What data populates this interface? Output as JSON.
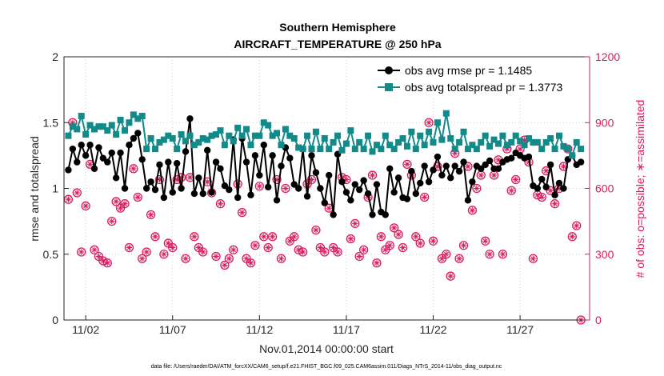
{
  "chart_data": {
    "type": "line",
    "title": "Southern Hemisphere",
    "subtitle": "AIRCRAFT_TEMPERATURE @ 250 hPa",
    "xlabel": "Nov.01,2014 00:00:00 start",
    "ylabel": "rmse and totalspread",
    "ylabel_right": "# of obs: o=possible; ∗=assimilated",
    "footer": "data file: /Users/raeder/DAI/ATM_forcXX/CAM6_setup/f.e21.FHIST_BGC.f09_025.CAM6assim.011/Diags_NTrS_2014-11/obs_diag_output.nc",
    "x_tick_labels": [
      "11/02",
      "11/07",
      "11/12",
      "11/17",
      "11/22",
      "11/27"
    ],
    "x_tick_days": [
      2,
      7,
      12,
      17,
      22,
      27
    ],
    "x_range_days": [
      0.75,
      31.0
    ],
    "ylim": [
      0,
      2
    ],
    "y_ticks": [
      "0",
      "0.5",
      "1",
      "1.5",
      "2"
    ],
    "ylim_right": [
      0,
      1200
    ],
    "y_ticks_right": [
      "0",
      "300",
      "600",
      "900",
      "1200"
    ],
    "legend_position": "top-right",
    "grid": true,
    "colors": {
      "rmse": "#000000",
      "spread": "#138a8a",
      "obs": "#d81b60",
      "axis": "#262626"
    },
    "x_start_day": 1.0,
    "x_step_days": 0.25,
    "series": [
      {
        "name": "obs avg rmse pr = 1.1485",
        "marker": "circle",
        "values": [
          1.14,
          1.3,
          1.2,
          1.33,
          1.25,
          1.33,
          1.15,
          1.31,
          1.23,
          1.2,
          1.27,
          1.08,
          1.27,
          1.0,
          1.33,
          1.38,
          1.42,
          1.22,
          1.0,
          1.05,
          0.99,
          1.18,
          0.93,
          1.2,
          0.97,
          1.19,
          1.0,
          1.28,
          1.53,
          0.96,
          1.08,
          0.96,
          1.29,
          0.97,
          1.2,
          1.15,
          1.02,
          0.99,
          1.37,
          0.93,
          1.38,
          1.2,
          0.95,
          1.25,
          1.1,
          1.33,
          1.01,
          1.25,
          0.91,
          1.17,
          1.31,
          1.23,
          1.03,
          1.0,
          1.3,
          0.94,
          1.25,
          1.12,
          1.0,
          0.89,
          1.1,
          0.8,
          1.26,
          1.05,
          0.97,
          0.91,
          1.03,
          0.99,
          1.06,
          0.96,
          0.8,
          1.03,
          0.82,
          0.8,
          1.15,
          0.97,
          1.08,
          0.93,
          0.92,
          1.13,
          0.96,
          1.04,
          1.17,
          1.05,
          1.14,
          1.24,
          1.1,
          1.17,
          1.08,
          1.17,
          1.13,
          1.2,
          0.91,
          1.05,
          1.17,
          1.15,
          1.18,
          1.21,
          1.15,
          1.15,
          1.2,
          1.22,
          1.23,
          1.27,
          1.25,
          1.23,
          1.24,
          1.02,
          1.0,
          1.07,
          1.01,
          1.18,
          0.95,
          1.04,
          1.0,
          1.22,
          1.25,
          1.18,
          1.2
        ]
      },
      {
        "name": "obs avg totalspread pr = 1.3773",
        "marker": "square",
        "values": [
          1.4,
          1.47,
          1.45,
          1.55,
          1.41,
          1.48,
          1.45,
          1.47,
          1.47,
          1.44,
          1.48,
          1.41,
          1.52,
          1.44,
          1.5,
          1.56,
          1.53,
          1.55,
          1.3,
          1.38,
          1.3,
          1.35,
          1.37,
          1.4,
          1.38,
          1.3,
          1.41,
          1.36,
          1.4,
          1.33,
          1.35,
          1.38,
          1.37,
          1.4,
          1.41,
          1.44,
          1.33,
          1.4,
          1.36,
          1.46,
          1.4,
          1.45,
          1.33,
          1.4,
          1.4,
          1.5,
          1.48,
          1.4,
          1.42,
          1.33,
          1.45,
          1.4,
          1.38,
          1.31,
          1.3,
          1.4,
          1.3,
          1.43,
          1.3,
          1.38,
          1.3,
          1.35,
          1.4,
          1.29,
          1.34,
          1.44,
          1.3,
          1.35,
          1.3,
          1.4,
          1.28,
          1.33,
          1.3,
          1.4,
          1.33,
          1.3,
          1.35,
          1.38,
          1.32,
          1.43,
          1.3,
          1.4,
          1.33,
          1.43,
          1.35,
          1.5,
          1.37,
          1.57,
          1.38,
          1.3,
          1.35,
          1.43,
          1.3,
          1.33,
          1.3,
          1.35,
          1.4,
          1.32,
          1.37,
          1.34,
          1.4,
          1.33,
          1.35,
          1.4,
          1.36,
          1.33,
          1.38,
          1.35,
          1.35,
          1.3,
          1.35,
          1.38,
          1.3,
          1.4,
          1.32,
          1.3,
          1.25,
          1.35,
          1.3
        ]
      },
      {
        "name": "obs possible",
        "marker": "circle-open",
        "axis": "right",
        "values": [
          550,
          900,
          580,
          310,
          520,
          710,
          320,
          290,
          270,
          260,
          450,
          540,
          510,
          530,
          330,
          690,
          560,
          280,
          310,
          480,
          380,
          640,
          300,
          350,
          330,
          640,
          650,
          280,
          650,
          380,
          330,
          310,
          630,
          580,
          290,
          530,
          250,
          280,
          320,
          620,
          490,
          280,
          260,
          340,
          610,
          380,
          330,
          380,
          640,
          280,
          600,
          360,
          380,
          320,
          310,
          620,
          640,
          410,
          330,
          310,
          510,
          330,
          310,
          650,
          640,
          370,
          440,
          290,
          320,
          560,
          660,
          260,
          380,
          320,
          340,
          420,
          390,
          330,
          710,
          660,
          380,
          350,
          560,
          900,
          360,
          700,
          280,
          300,
          200,
          760,
          280,
          340,
          700,
          500,
          600,
          660,
          360,
          300,
          660,
          730,
          300,
          780,
          590,
          640,
          780,
          820,
          720,
          280,
          570,
          560,
          680,
          590,
          530,
          600,
          700,
          780,
          380,
          430,
          0
        ]
      }
    ]
  },
  "legend": {
    "rmse_label": "obs avg rmse pr = 1.1485",
    "spread_label": "obs avg totalspread pr = 1.3773"
  }
}
